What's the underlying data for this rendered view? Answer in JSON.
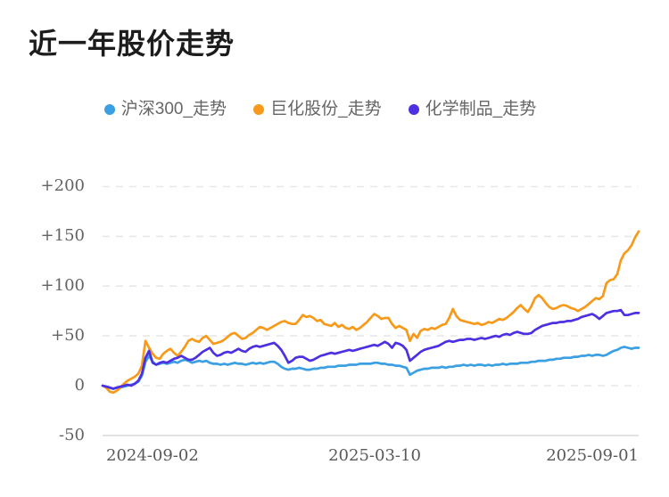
{
  "page": {
    "title": "近一年股价走势"
  },
  "legend": [
    {
      "id": "hs300",
      "label": "沪深300_走势",
      "color": "#3b9fe3"
    },
    {
      "id": "juhua",
      "label": "巨化股份_走势",
      "color": "#f79a1c"
    },
    {
      "id": "chemical",
      "label": "化学制品_走势",
      "color": "#4c31e3"
    }
  ],
  "chart_data": {
    "type": "line",
    "title": "近一年股价走势",
    "xlabel": "",
    "ylabel": "",
    "ylim": [
      -50,
      200
    ],
    "grid": "horizontal dashed",
    "legend_position": "top-center",
    "x_tick_labels": [
      "2024-09-02",
      "2025-03-10",
      "2025-09-01"
    ],
    "y_ticks": [
      200,
      150,
      100,
      50,
      0,
      -50
    ],
    "y_tick_labels": [
      "+200",
      "+150",
      "+100",
      "+50",
      "0",
      "-50"
    ],
    "x_range_days": 364,
    "series": [
      {
        "id": "hs300",
        "name": "沪深300_走势",
        "color": "#3b9fe3",
        "values": [
          0,
          -1,
          -2,
          -3,
          -2,
          -2,
          -1,
          0,
          1,
          2,
          4,
          10,
          24,
          30,
          24,
          21,
          22,
          23,
          22,
          23,
          24,
          23,
          25,
          26,
          25,
          23,
          24,
          25,
          24,
          25,
          23,
          22,
          22,
          21,
          22,
          21,
          22,
          23,
          22,
          22,
          21,
          22,
          23,
          22,
          23,
          22,
          23,
          24,
          24,
          22,
          19,
          17,
          16,
          17,
          17,
          18,
          17,
          16,
          16,
          17,
          17,
          18,
          18,
          19,
          19,
          19,
          20,
          20,
          20,
          21,
          21,
          21,
          22,
          22,
          22,
          22,
          23,
          23,
          22,
          22,
          21,
          21,
          20,
          20,
          19,
          18,
          11,
          13,
          15,
          16,
          17,
          17,
          18,
          18,
          18,
          19,
          18,
          19,
          19,
          20,
          20,
          21,
          20,
          21,
          20,
          21,
          21,
          20,
          21,
          20,
          21,
          21,
          22,
          21,
          22,
          22,
          22,
          23,
          23,
          23,
          24,
          24,
          25,
          25,
          25,
          26,
          26,
          27,
          27,
          28,
          28,
          28,
          29,
          29,
          30,
          30,
          31,
          30,
          31,
          31,
          30,
          31,
          33,
          35,
          36,
          38,
          39,
          38,
          37,
          38,
          38
        ]
      },
      {
        "id": "juhua",
        "name": "巨化股份_走势",
        "color": "#f79a1c",
        "values": [
          0,
          -2,
          -6,
          -7,
          -5,
          -2,
          2,
          5,
          7,
          9,
          12,
          20,
          45,
          38,
          32,
          28,
          27,
          32,
          35,
          37,
          33,
          30,
          34,
          39,
          45,
          47,
          45,
          44,
          48,
          50,
          46,
          42,
          43,
          44,
          46,
          49,
          52,
          53,
          50,
          47,
          48,
          51,
          53,
          56,
          59,
          58,
          56,
          58,
          60,
          62,
          64,
          65,
          63,
          62,
          62,
          66,
          71,
          69,
          70,
          68,
          65,
          66,
          62,
          61,
          60,
          63,
          59,
          61,
          58,
          57,
          59,
          56,
          58,
          61,
          64,
          68,
          72,
          70,
          67,
          68,
          68,
          62,
          58,
          60,
          58,
          56,
          45,
          52,
          48,
          55,
          57,
          56,
          58,
          57,
          59,
          61,
          62,
          68,
          77,
          70,
          66,
          65,
          64,
          63,
          62,
          63,
          61,
          62,
          64,
          63,
          65,
          67,
          66,
          68,
          71,
          74,
          78,
          81,
          77,
          74,
          80,
          88,
          91,
          88,
          83,
          79,
          77,
          78,
          80,
          81,
          80,
          78,
          77,
          75,
          77,
          79,
          82,
          85,
          88,
          87,
          90,
          103,
          106,
          107,
          112,
          126,
          133,
          136,
          141,
          149,
          155
        ]
      },
      {
        "id": "chemical",
        "name": "化学制品_走势",
        "color": "#4c31e3",
        "values": [
          0,
          -1,
          -2,
          -3,
          -2,
          -1,
          0,
          1,
          0,
          2,
          5,
          12,
          28,
          35,
          23,
          21,
          23,
          24,
          23,
          25,
          27,
          28,
          30,
          28,
          26,
          26,
          28,
          31,
          34,
          36,
          38,
          33,
          30,
          31,
          33,
          34,
          33,
          35,
          37,
          35,
          34,
          37,
          39,
          40,
          39,
          40,
          41,
          42,
          43,
          40,
          36,
          30,
          23,
          25,
          28,
          29,
          29,
          27,
          25,
          26,
          28,
          30,
          31,
          32,
          33,
          32,
          33,
          34,
          35,
          36,
          35,
          36,
          37,
          38,
          39,
          40,
          41,
          40,
          42,
          44,
          42,
          38,
          43,
          42,
          40,
          36,
          25,
          28,
          31,
          34,
          36,
          37,
          38,
          39,
          40,
          42,
          44,
          45,
          44,
          45,
          46,
          46,
          47,
          47,
          46,
          47,
          48,
          47,
          48,
          49,
          50,
          49,
          51,
          52,
          51,
          53,
          54,
          53,
          52,
          52,
          53,
          56,
          58,
          60,
          61,
          62,
          63,
          63,
          64,
          64,
          65,
          65,
          66,
          67,
          69,
          70,
          71,
          72,
          70,
          67,
          70,
          73,
          74,
          75,
          75,
          76,
          71,
          71,
          72,
          73,
          73
        ]
      }
    ]
  }
}
